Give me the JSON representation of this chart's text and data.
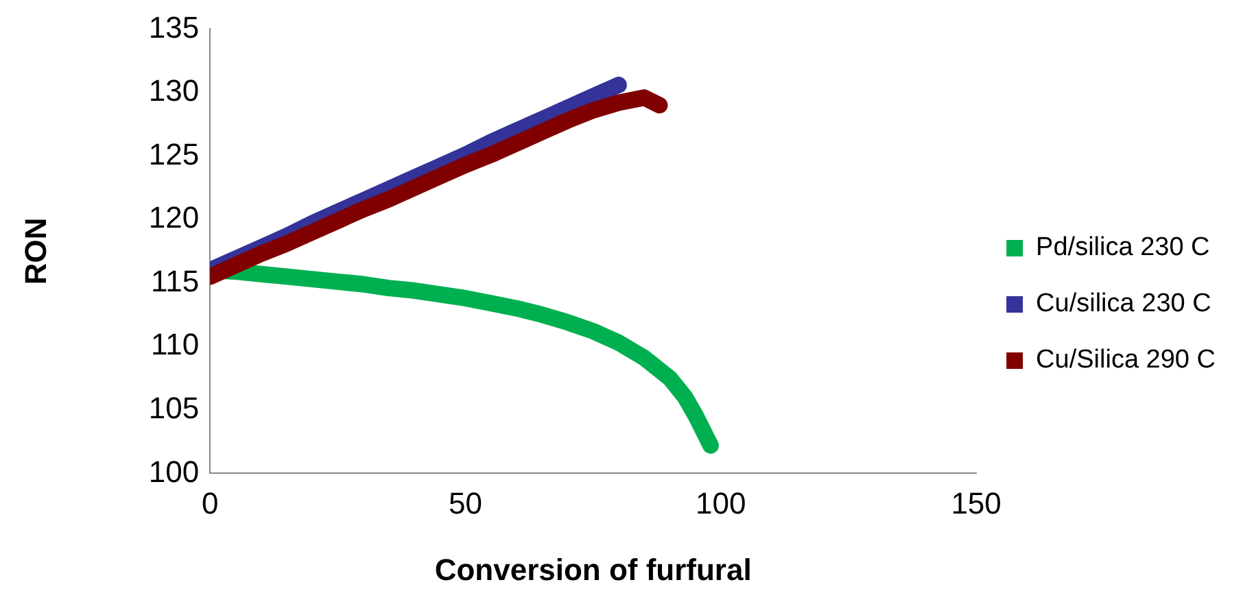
{
  "chart_data": {
    "type": "line",
    "xlabel": "Conversion of furfural",
    "ylabel": "RON",
    "xlim": [
      0,
      150
    ],
    "xticks": [
      0,
      50,
      100,
      150
    ],
    "ylim": [
      100,
      135
    ],
    "yticks": [
      100,
      105,
      110,
      115,
      120,
      125,
      130,
      135
    ],
    "grid": false,
    "legend": "right",
    "series": [
      {
        "name": "Pd/silica 230 C",
        "color": "#00b050",
        "x": [
          0,
          5,
          10,
          15,
          20,
          25,
          30,
          35,
          40,
          45,
          50,
          55,
          60,
          65,
          70,
          75,
          80,
          85,
          90,
          93,
          95,
          97,
          98
        ],
        "values": [
          116,
          115.9,
          115.7,
          115.5,
          115.3,
          115.1,
          114.9,
          114.6,
          114.4,
          114.1,
          113.8,
          113.4,
          113,
          112.5,
          111.9,
          111.2,
          110.3,
          109.1,
          107.5,
          106,
          104.6,
          103,
          102.2
        ]
      },
      {
        "name": "Cu/silica 230 C",
        "color": "#333399",
        "x": [
          0,
          5,
          10,
          15,
          20,
          25,
          30,
          35,
          40,
          45,
          50,
          55,
          60,
          65,
          70,
          75,
          80
        ],
        "values": [
          116,
          116.9,
          117.8,
          118.7,
          119.7,
          120.6,
          121.5,
          122.4,
          123.3,
          124.2,
          125.1,
          126.1,
          127,
          127.9,
          128.8,
          129.7,
          130.6
        ]
      },
      {
        "name": "Cu/Silica 290 C",
        "color": "#800000",
        "x": [
          0,
          5,
          10,
          15,
          20,
          25,
          30,
          35,
          40,
          45,
          50,
          55,
          60,
          65,
          70,
          75,
          80,
          85,
          88
        ],
        "values": [
          115.5,
          116.4,
          117.3,
          118.1,
          119,
          119.9,
          120.8,
          121.6,
          122.5,
          123.4,
          124.3,
          125.1,
          126,
          126.9,
          127.8,
          128.6,
          129.2,
          129.6,
          129
        ]
      }
    ]
  }
}
